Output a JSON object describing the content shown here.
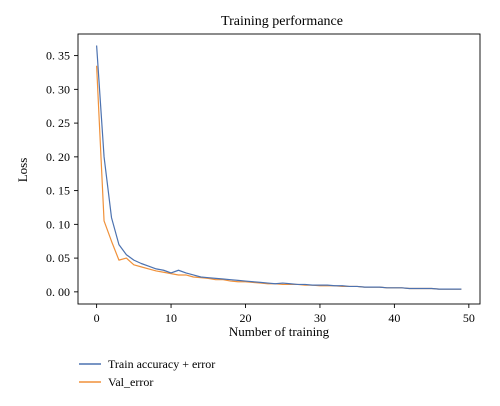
{
  "chart_data": {
    "type": "line",
    "title": "Training performance",
    "xlabel": "Number of training",
    "ylabel": "Loss",
    "xlim": [
      -2.5,
      51.5
    ],
    "ylim": [
      -0.018,
      0.382
    ],
    "xticks": [
      0,
      10,
      20,
      30,
      40,
      50
    ],
    "xtick_labels": [
      "0",
      "10",
      "20",
      "30",
      "40",
      "50"
    ],
    "yticks": [
      0.0,
      0.05,
      0.1,
      0.15,
      0.2,
      0.25,
      0.3,
      0.35
    ],
    "ytick_labels": [
      "0. 00",
      "0. 05",
      "0. 10",
      "0. 15",
      "0. 20",
      "0. 25",
      "0. 30",
      "0. 35"
    ],
    "grid": false,
    "legend_position": "below plot, left",
    "x": [
      0,
      1,
      2,
      3,
      4,
      5,
      6,
      7,
      8,
      9,
      10,
      11,
      12,
      13,
      14,
      15,
      16,
      17,
      18,
      19,
      20,
      21,
      22,
      23,
      24,
      25,
      26,
      27,
      28,
      29,
      30,
      31,
      32,
      33,
      34,
      35,
      36,
      37,
      38,
      39,
      40,
      41,
      42,
      43,
      44,
      45,
      46,
      47,
      48,
      49
    ],
    "series": [
      {
        "name": "Train accuracy + error",
        "color": "#4c72b0",
        "values": [
          0.365,
          0.2,
          0.11,
          0.07,
          0.055,
          0.047,
          0.042,
          0.038,
          0.034,
          0.032,
          0.028,
          0.032,
          0.028,
          0.025,
          0.022,
          0.021,
          0.02,
          0.019,
          0.018,
          0.017,
          0.016,
          0.015,
          0.014,
          0.013,
          0.012,
          0.013,
          0.012,
          0.011,
          0.011,
          0.01,
          0.01,
          0.01,
          0.009,
          0.009,
          0.008,
          0.008,
          0.007,
          0.007,
          0.007,
          0.006,
          0.006,
          0.006,
          0.005,
          0.005,
          0.005,
          0.005,
          0.004,
          0.004,
          0.004,
          0.004
        ]
      },
      {
        "name": "Val_error",
        "color": "#f0913a",
        "values": [
          0.335,
          0.105,
          0.075,
          0.047,
          0.05,
          0.04,
          0.037,
          0.034,
          0.031,
          0.029,
          0.027,
          0.025,
          0.025,
          0.022,
          0.021,
          0.02,
          0.018,
          0.018,
          0.016,
          0.015,
          0.015,
          0.014,
          0.013,
          0.012,
          0.012,
          0.011,
          0.011,
          0.011,
          0.01,
          0.01,
          0.009,
          0.009,
          0.009,
          0.008,
          0.008,
          0.008,
          0.007,
          0.007,
          0.007,
          0.006,
          0.006,
          0.006,
          0.005,
          0.005,
          0.005,
          0.005,
          0.004,
          0.004,
          0.004,
          0.004
        ]
      }
    ]
  }
}
